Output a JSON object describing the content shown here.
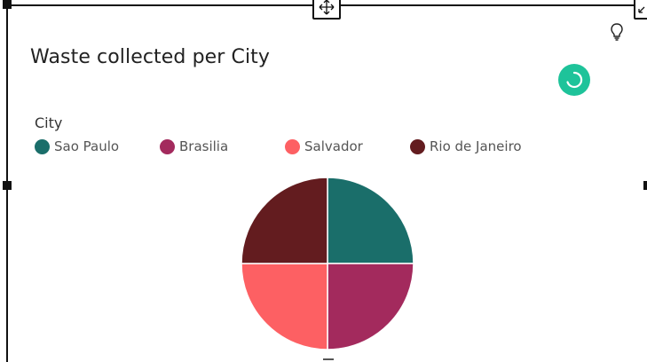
{
  "visual": {
    "title": "Waste collected per City",
    "legend": {
      "title": "City",
      "items": [
        {
          "label": "Sao Paulo",
          "color": "#1a6e6a"
        },
        {
          "label": "Brasilia",
          "color": "#a32a5d"
        },
        {
          "label": "Salvador",
          "color": "#fd6063"
        },
        {
          "label": "Rio de Janeiro",
          "color": "#631c1f"
        }
      ]
    },
    "icons": [
      "move-icon",
      "resize-icon",
      "lightbulb-icon",
      "loading-spinner-icon"
    ]
  },
  "chart_data": {
    "type": "pie",
    "title": "Waste collected per City",
    "categories": [
      "Sao Paulo",
      "Brasilia",
      "Salvador",
      "Rio de Janeiro"
    ],
    "values": [
      25,
      25,
      25,
      25
    ],
    "colors": [
      "#1a6e6a",
      "#a32a5d",
      "#fd6063",
      "#631c1f"
    ],
    "legend_position": "top-left"
  }
}
